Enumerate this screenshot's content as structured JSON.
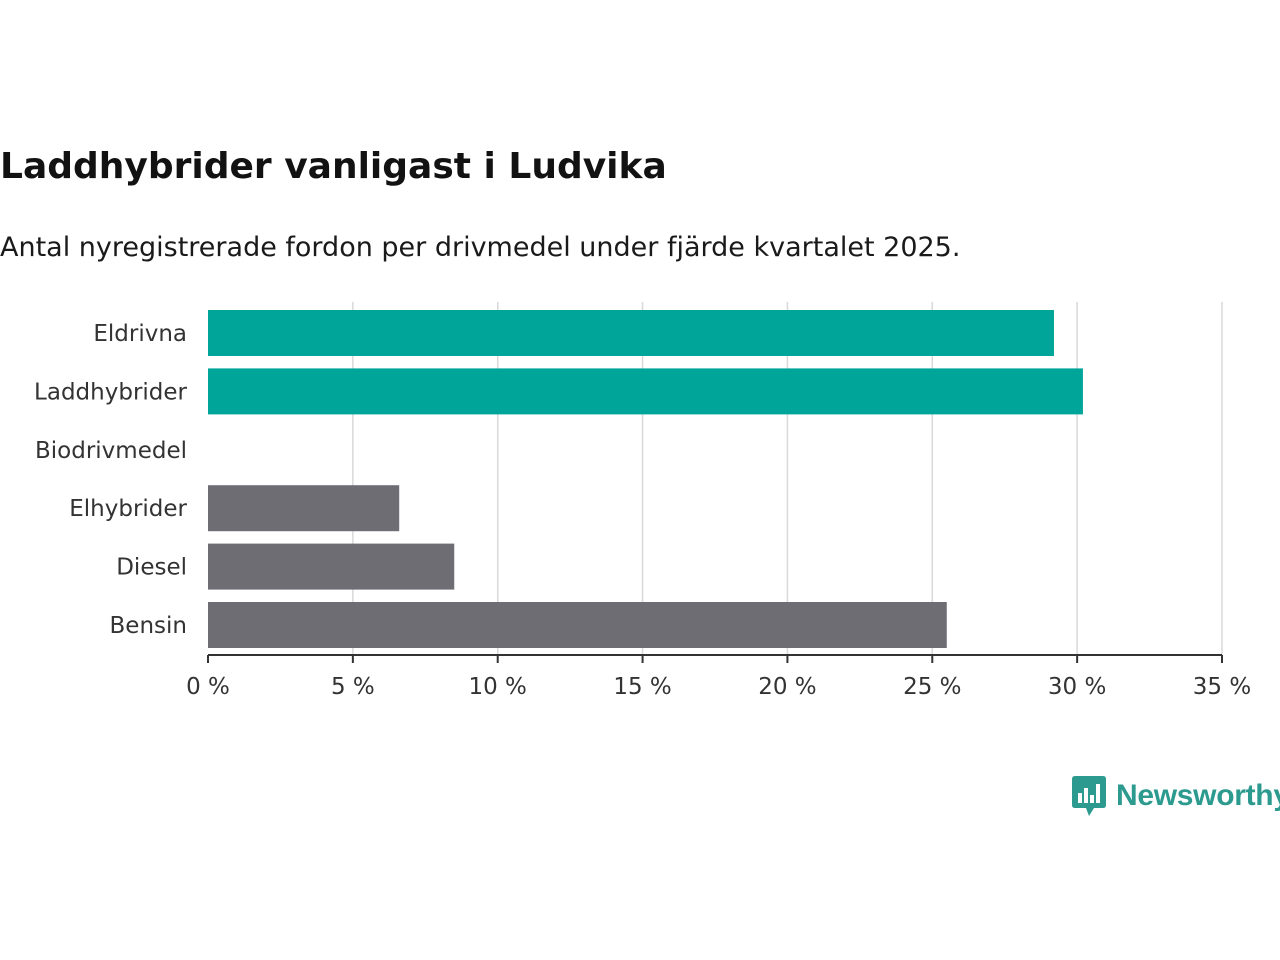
{
  "header": {
    "title": "Laddhybrider vanligast i Ludvika",
    "subtitle": "Antal nyregistrerade fordon per drivmedel under fjärde kvartalet 2025."
  },
  "colors": {
    "highlight": "#00a59a",
    "default": "#6e6d74",
    "grid": "#d9d9d9",
    "axis": "#333333",
    "brand": "#2c9a8e"
  },
  "brand": {
    "name": "Newsworthy",
    "icon": "bar-chart-speech-bubble-icon"
  },
  "chart_data": {
    "type": "bar",
    "orientation": "horizontal",
    "title": "Laddhybrider vanligast i Ludvika",
    "subtitle": "Antal nyregistrerade fordon per drivmedel under fjärde kvartalet 2025.",
    "xlabel": "",
    "ylabel": "",
    "xlim": [
      0,
      35
    ],
    "tick_values": [
      0,
      5,
      10,
      15,
      20,
      25,
      30,
      35
    ],
    "tick_labels": [
      "0 %",
      "5 %",
      "10 %",
      "15 %",
      "20 %",
      "25 %",
      "30 %",
      "35 %"
    ],
    "grid": true,
    "categories": [
      "Eldrivna",
      "Laddhybrider",
      "Biodrivmedel",
      "Elhybrider",
      "Diesel",
      "Bensin"
    ],
    "values": [
      29.2,
      30.2,
      0,
      6.6,
      8.5,
      25.5
    ],
    "highlighted": [
      true,
      true,
      true,
      false,
      false,
      false
    ]
  }
}
